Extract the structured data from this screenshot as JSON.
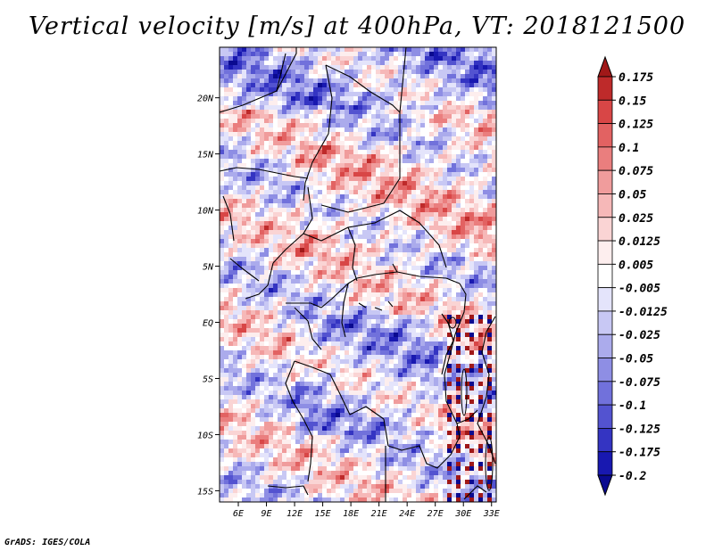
{
  "title": "Vertical velocity [m/s] at 400hPa, VT: 2018121500",
  "footer": "GrADS: IGES/COLA",
  "map": {
    "lat_labels": [
      "20N",
      "15N",
      "10N",
      "5N",
      "EQ",
      "5S",
      "10S",
      "15S"
    ],
    "lat_values": [
      20,
      15,
      10,
      5,
      0,
      -5,
      -10,
      -15
    ],
    "lon_labels": [
      "6E",
      "9E",
      "12E",
      "15E",
      "18E",
      "21E",
      "24E",
      "27E",
      "30E",
      "33E"
    ],
    "lon_values": [
      6,
      9,
      12,
      15,
      18,
      21,
      24,
      27,
      30,
      33
    ],
    "lat_range": [
      -16,
      24.5
    ],
    "lon_range": [
      4,
      33.5
    ]
  },
  "colorbar": {
    "labels": [
      "0.175",
      "0.15",
      "0.125",
      "0.1",
      "0.075",
      "0.05",
      "0.025",
      "0.0125",
      "0.005",
      "-0.005",
      "-0.0125",
      "-0.025",
      "-0.05",
      "-0.075",
      "-0.1",
      "-0.125",
      "-0.175",
      "-0.2"
    ],
    "colors": [
      "#a01818",
      "#be2a2a",
      "#d84646",
      "#e26262",
      "#ea7e7e",
      "#f09c9c",
      "#f6b8b8",
      "#fad4d4",
      "#fdeeee",
      "#ffffff",
      "#e4e4fb",
      "#c8c8f4",
      "#ababec",
      "#8e8ee4",
      "#7171db",
      "#5353d0",
      "#3434c2",
      "#1818b0",
      "#0a0a90"
    ]
  }
}
